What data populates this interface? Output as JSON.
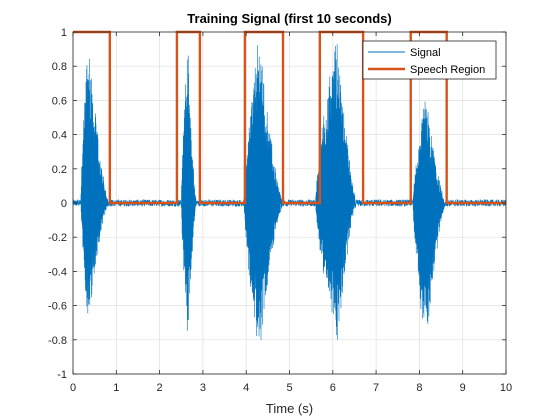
{
  "chart_data": {
    "type": "line",
    "title": "Training Signal (first 10 seconds)",
    "xlabel": "Time (s)",
    "ylabel": "",
    "xlim": [
      0,
      10
    ],
    "ylim": [
      -1,
      1
    ],
    "xticks": [
      0,
      1,
      2,
      3,
      4,
      5,
      6,
      7,
      8,
      9,
      10
    ],
    "yticks": [
      -1,
      -0.8,
      -0.6,
      -0.4,
      -0.2,
      0,
      0.2,
      0.4,
      0.6,
      0.8,
      1
    ],
    "grid": true,
    "legend_position": "top-right",
    "series": [
      {
        "name": "Signal",
        "color": "#0072BD",
        "style": "thin line",
        "bursts": [
          {
            "start": 0.18,
            "end": 0.82,
            "peak_time": 0.35,
            "max": 0.98,
            "min": -0.7
          },
          {
            "start": 2.5,
            "end": 2.85,
            "peak_time": 2.65,
            "max": 0.95,
            "min": -0.81
          },
          {
            "start": 3.95,
            "end": 4.85,
            "peak_time": 4.3,
            "max": 0.99,
            "min": -0.88
          },
          {
            "start": 5.6,
            "end": 6.55,
            "peak_time": 6.1,
            "max": 0.98,
            "min": -0.82
          },
          {
            "start": 7.85,
            "end": 8.6,
            "peak_time": 8.15,
            "max": 0.64,
            "min": -0.86
          }
        ],
        "noise_floor": 0.02
      },
      {
        "name": "Speech Region",
        "color": "#D95319",
        "style": "thick step line",
        "x": [
          0,
          0.85,
          0.85,
          2.4,
          2.4,
          2.93,
          2.93,
          3.97,
          3.97,
          4.85,
          4.85,
          5.7,
          5.7,
          6.7,
          6.7,
          7.8,
          7.8,
          8.63,
          8.63,
          10
        ],
        "y": [
          1,
          1,
          0,
          0,
          1,
          1,
          0,
          0,
          1,
          1,
          0,
          0,
          1,
          1,
          0,
          0,
          1,
          1,
          0,
          0
        ]
      }
    ]
  }
}
